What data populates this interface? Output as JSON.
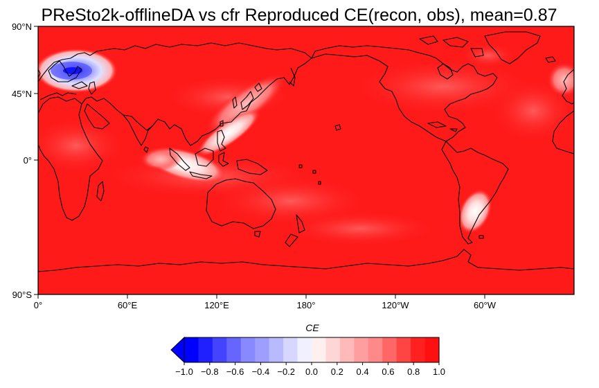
{
  "figure": {
    "title": "PReSto2k-offlineDA vs cfr Reproduced CE(recon, obs), mean=0.87"
  },
  "map": {
    "projection": "PlateCarree",
    "central_longitude": 180,
    "lat_ticks": [
      "90°N",
      "45°N",
      "0°",
      "90°S"
    ],
    "lon_ticks": [
      "0°",
      "60°E",
      "120°E",
      "180°",
      "120°W",
      "60°W"
    ],
    "background_color": "#ff1a1a",
    "coastline_color": "#000000",
    "low_skill_regions": [
      {
        "name": "northern-europe",
        "lon": 25,
        "lat": 60,
        "min_value": -0.7
      },
      {
        "name": "indian-ocean-sumatra",
        "lon": 97,
        "lat": 0,
        "min_value": 0.0
      },
      {
        "name": "philippine-sea",
        "lon": 128,
        "lat": 18,
        "min_value": 0.3
      },
      {
        "name": "south-atlantic",
        "lon": 301,
        "lat": -35,
        "min_value": 0.0
      },
      {
        "name": "central-asia-china",
        "lon": 110,
        "lat": 40,
        "min_value": 0.6
      }
    ]
  },
  "colorbar": {
    "label": "CE",
    "extend": "min",
    "ticks": [
      "−1.0",
      "−0.8",
      "−0.6",
      "−0.4",
      "−0.2",
      "0.0",
      "0.2",
      "0.4",
      "0.6",
      "0.8",
      "1.0"
    ],
    "colors": [
      "#0000ff",
      "#2020ff",
      "#4444ff",
      "#6666ff",
      "#8888ff",
      "#9e9eff",
      "#b9b9ff",
      "#d6d6ff",
      "#f0f0ff",
      "#fff0f0",
      "#ffd6d6",
      "#ffb9b9",
      "#ff9e9e",
      "#ff8888",
      "#ff6666",
      "#ff4444",
      "#ff2020",
      "#ff1010"
    ]
  }
}
